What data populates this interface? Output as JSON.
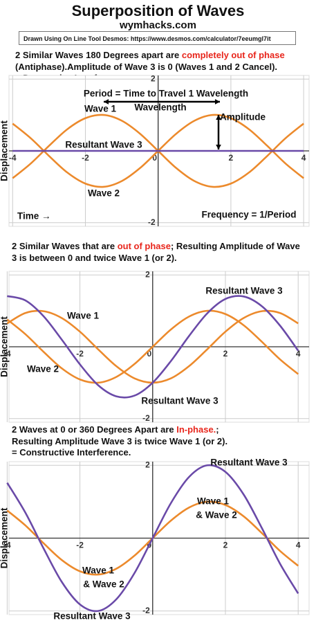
{
  "header": {
    "title": "Superposition of Waves",
    "site": "wymhacks.com",
    "source": "Drawn Using On Line Tool Desmos:  https://www.desmos.com/calculator/7eeumgl7it"
  },
  "chart_data": [
    {
      "type": "line",
      "heading": [
        [
          {
            "text": "2 Similar Waves 180 Degrees apart are "
          },
          {
            "text": "completely out of phase",
            "color": "#e8261c"
          },
          {
            "text": " (Antiphase).Amplitude of Wave 3 is 0 (Waves 1 and 2 Cancel)."
          }
        ],
        [
          {
            "text": "= Destructive Interference"
          }
        ]
      ],
      "ylabel": "Displacement",
      "annotations": [
        "Period = Time to Travel 1 Wavelength",
        "Wavelength",
        "Wave 1",
        "Amplitude",
        "Resultant Wave 3",
        "Wave 2",
        "Time →",
        "Frequency = 1/Period"
      ],
      "x": [
        -4,
        -3.5,
        -3,
        -2.5,
        -2,
        -1.5,
        -1,
        -0.5,
        0,
        0.5,
        1,
        1.5,
        2,
        2.5,
        3,
        3.5,
        4
      ],
      "series": [
        {
          "color": "#ec8a2c",
          "values": [
            -0.76,
            -0.35,
            0.14,
            0.6,
            0.91,
            1,
            0.84,
            0.48,
            0,
            -0.48,
            -0.84,
            -1,
            -0.91,
            -0.6,
            -0.14,
            0.35,
            0.76
          ]
        },
        {
          "color": "#ec8a2c",
          "values": [
            0.76,
            0.35,
            -0.14,
            -0.6,
            -0.91,
            -1,
            -0.84,
            -0.48,
            0,
            0.48,
            0.84,
            1,
            0.91,
            0.6,
            0.14,
            -0.35,
            -0.76
          ]
        },
        {
          "color": "#6a4aa8",
          "values": [
            0,
            0,
            0,
            0,
            0,
            0,
            0,
            0,
            0,
            0,
            0,
            0,
            0,
            0,
            0,
            0,
            0
          ]
        }
      ],
      "xlim": [
        -4.1,
        4.15
      ],
      "ylim": [
        -2.1,
        2.1
      ],
      "xticks": [
        -4,
        -2,
        0,
        2,
        4
      ],
      "yticks": [
        -2,
        2
      ],
      "grid": true
    },
    {
      "type": "line",
      "heading": [
        [
          {
            "text": "2 Similar Waves that are "
          },
          {
            "text": "out of phase",
            "color": "#e8261c"
          },
          {
            "text": "; Resulting Amplitude of Wave 3 is between 0 and twice Wave 1 (or 2)."
          }
        ]
      ],
      "ylabel": "Displacement",
      "annotations": [
        "Resultant Wave 3",
        "Wave 1",
        "Wave 2",
        "Resultant Wave 3"
      ],
      "x": [
        -4,
        -3.5,
        -3,
        -2.5,
        -2,
        -1.5,
        -1,
        -0.5,
        0,
        0.5,
        1,
        1.5,
        2,
        2.5,
        3,
        3.5,
        4
      ],
      "series": [
        {
          "color": "#ec8a2c",
          "values": [
            0.76,
            0.35,
            -0.14,
            -0.6,
            -0.91,
            -1,
            -0.84,
            -0.48,
            0,
            0.48,
            0.84,
            1,
            0.91,
            0.6,
            0.14,
            -0.35,
            -0.76
          ]
        },
        {
          "color": "#ec8a2c",
          "values": [
            0.65,
            0.94,
            0.99,
            0.8,
            0.42,
            -0.07,
            -0.54,
            -0.88,
            -1,
            -0.88,
            -0.54,
            -0.07,
            0.42,
            0.8,
            0.99,
            0.94,
            0.65
          ]
        },
        {
          "color": "#6a4aa8",
          "values": [
            1.41,
            1.29,
            0.85,
            0.2,
            -0.49,
            -1.07,
            -1.38,
            -1.36,
            -1,
            -0.4,
            0.3,
            0.93,
            1.33,
            1.4,
            1.13,
            0.59,
            -0.11
          ]
        }
      ],
      "xlim": [
        -3.95,
        4.3
      ],
      "ylim": [
        -2.1,
        2.1
      ],
      "xticks": [
        -4,
        -2,
        0,
        2,
        4
      ],
      "yticks": [
        -2,
        2
      ],
      "grid": true
    },
    {
      "type": "line",
      "heading": [
        [
          {
            "text": "2 Waves at 0 or 360 Degrees Apart  are "
          },
          {
            "text": "In-phase.",
            "color": "#e8261c"
          },
          {
            "text": ";"
          }
        ],
        [
          {
            "text": "Resulting Amplitude Wave 3 is twice Wave 1 (or 2)."
          }
        ],
        [
          {
            "text": "= Constructive Interference."
          }
        ]
      ],
      "ylabel": "Displacement",
      "annotations": [
        "Resultant Wave 3",
        "Wave 1",
        "& Wave 2",
        "Wave 1",
        "& Wave 2",
        "Resultant Wave 3"
      ],
      "x": [
        -4,
        -3.5,
        -3,
        -2.5,
        -2,
        -1.5,
        -1,
        -0.5,
        0,
        0.5,
        1,
        1.5,
        2,
        2.5,
        3,
        3.5,
        4
      ],
      "series": [
        {
          "color": "#ec8a2c",
          "values": [
            0.76,
            0.35,
            -0.14,
            -0.6,
            -0.91,
            -1,
            -0.84,
            -0.48,
            0,
            0.48,
            0.84,
            1,
            0.91,
            0.6,
            0.14,
            -0.35,
            -0.76
          ]
        },
        {
          "color": "#6a4aa8",
          "values": [
            1.52,
            0.7,
            -0.28,
            -1.2,
            -1.82,
            -2,
            -1.68,
            -0.96,
            0,
            0.96,
            1.68,
            2,
            1.82,
            1.2,
            0.28,
            -0.7,
            -1.52
          ]
        }
      ],
      "xlim": [
        -3.95,
        4.3
      ],
      "ylim": [
        -2.1,
        2.1
      ],
      "xticks": [
        -4,
        -2,
        0,
        2,
        4
      ],
      "yticks": [
        -2,
        2
      ],
      "grid": true
    }
  ]
}
